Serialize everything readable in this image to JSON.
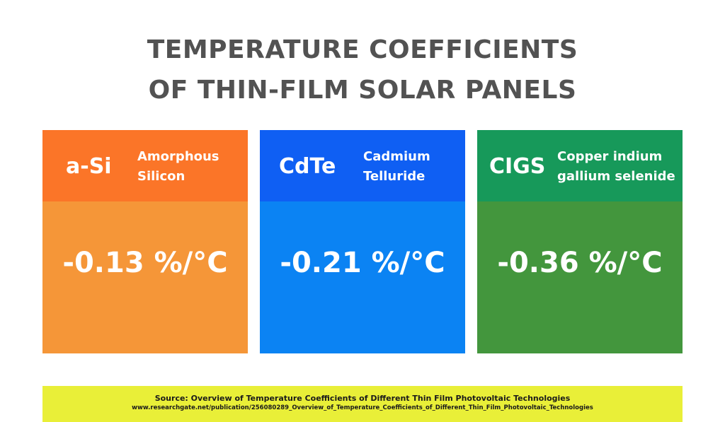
{
  "title": {
    "line1": "TEMPERATURE COEFFICIENTS",
    "line2": "OF THIN-FILM SOLAR PANELS"
  },
  "cards": [
    {
      "abbr": "a-Si",
      "full_line1": "Amorphous",
      "full_line2": "Silicon",
      "value": "-0.13 %/°C",
      "head_color": "#fb7528",
      "body_color": "#f59638"
    },
    {
      "abbr": "CdTe",
      "full_line1": "Cadmium",
      "full_line2": "Telluride",
      "value": "-0.21 %/°C",
      "head_color": "#0f5ff3",
      "body_color": "#0b83f3"
    },
    {
      "abbr": "CIGS",
      "full_line1": "Copper indium",
      "full_line2": "gallium selenide",
      "value": "-0.36 %/°C",
      "head_color": "#17995a",
      "body_color": "#43963d"
    }
  ],
  "source": {
    "title": "Source: Overview of Temperature Coefficients of Different Thin Film Photovoltaic Technologies",
    "url": "www.researchgate.net/publication/256080289_Overview_of_Temperature_Coefficients_of_Different_Thin_Film_Photovoltaic_Technologies",
    "background": "#e9ef38"
  }
}
